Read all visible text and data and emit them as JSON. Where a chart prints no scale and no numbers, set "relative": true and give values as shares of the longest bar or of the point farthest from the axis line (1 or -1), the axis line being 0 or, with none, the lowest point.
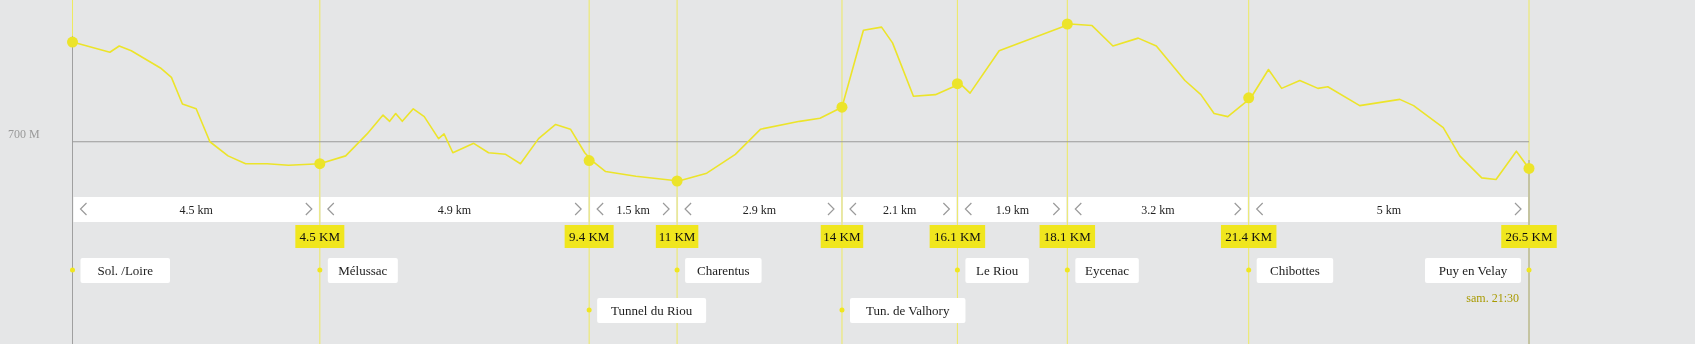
{
  "chart_data": {
    "type": "line",
    "relative": true,
    "xlim": [
      0,
      26.5
    ],
    "xticks": [
      {
        "value": 0,
        "label": null
      },
      {
        "value": 4.5,
        "label": "4.5 KM"
      },
      {
        "value": 9.4,
        "label": "9.4 KM"
      },
      {
        "value": 11,
        "label": "11 KM"
      },
      {
        "value": 14,
        "label": "14 KM"
      },
      {
        "value": 16.1,
        "label": "16.1 KM"
      },
      {
        "value": 18.1,
        "label": "18.1 KM"
      },
      {
        "value": 21.4,
        "label": "21.4 KM"
      },
      {
        "value": 26.5,
        "label": "26.5 KM"
      }
    ],
    "grid": "x",
    "marker": "none",
    "line_style": "solid",
    "series": [
      {
        "color": "#ece42a",
        "x": [
          0,
          0.68,
          0.85,
          1.07,
          1.6,
          1.8,
          2.0,
          2.25,
          2.5,
          2.83,
          3.15,
          3.54,
          3.93,
          4.5,
          4.97,
          5.36,
          5.65,
          5.77,
          5.88,
          6.0,
          6.2,
          6.4,
          6.66,
          6.76,
          6.92,
          7.3,
          7.57,
          7.88,
          8.15,
          8.48,
          8.79,
          9.06,
          9.32,
          9.45,
          9.7,
          10.25,
          11.03,
          11.54,
          12.06,
          12.52,
          13.23,
          13.6,
          14.0,
          14.39,
          14.72,
          14.92,
          15.3,
          15.7,
          16.15,
          16.33,
          16.86,
          17.39,
          18.15,
          18.55,
          18.93,
          19.39,
          19.72,
          20.24,
          20.53,
          20.77,
          21.02,
          21.44,
          21.76,
          22.0,
          22.33,
          22.66,
          22.84,
          23.42,
          24.15,
          24.4,
          24.94,
          25.24,
          25.64,
          25.9,
          26.27,
          26.5
        ],
        "values": [
          0.885,
          0.82,
          0.86,
          0.83,
          0.72,
          0.66,
          0.49,
          0.46,
          0.25,
          0.16,
          0.11,
          0.11,
          0.1,
          0.11,
          0.16,
          0.3,
          0.42,
          0.38,
          0.43,
          0.38,
          0.46,
          0.41,
          0.27,
          0.3,
          0.18,
          0.24,
          0.18,
          0.17,
          0.11,
          0.27,
          0.36,
          0.33,
          0.18,
          0.13,
          0.06,
          0.03,
          0,
          0.05,
          0.17,
          0.33,
          0.38,
          0.4,
          0.47,
          0.96,
          0.98,
          0.88,
          0.54,
          0.55,
          0.62,
          0.56,
          0.83,
          0.9,
          1,
          0.99,
          0.86,
          0.91,
          0.86,
          0.64,
          0.55,
          0.43,
          0.41,
          0.53,
          0.71,
          0.59,
          0.64,
          0.59,
          0.6,
          0.48,
          0.52,
          0.48,
          0.34,
          0.16,
          0.02,
          0.01,
          0.19,
          0.08
        ]
      },
      {
        "type": "scatter",
        "color": "#ece42a",
        "marker": "circle",
        "x": [
          0,
          4.5,
          9.4,
          11,
          14,
          16.1,
          18.1,
          21.4,
          26.5
        ],
        "values": [
          0.885,
          0.11,
          0.13,
          0,
          0.47,
          0.62,
          1,
          0.53,
          0.08
        ]
      }
    ],
    "ref_lines": [
      {
        "axis": "y",
        "value": 0.25,
        "label": "700 M",
        "color": "#9a9a9a"
      }
    ],
    "annotations": [
      "4.5 km",
      "4.9 km",
      "1.5 km",
      "2.9 km",
      "2.1 km",
      "1.9 km",
      "3.2 km",
      "5 km",
      "Sol. /Loire",
      "Mélussac",
      "Tunnel du Riou",
      "Charentus",
      "Tun. de Valhory",
      "Le Riou",
      "Eycenac",
      "Chibottes",
      "Puy en Velay",
      "sam. 21:30"
    ]
  }
}
